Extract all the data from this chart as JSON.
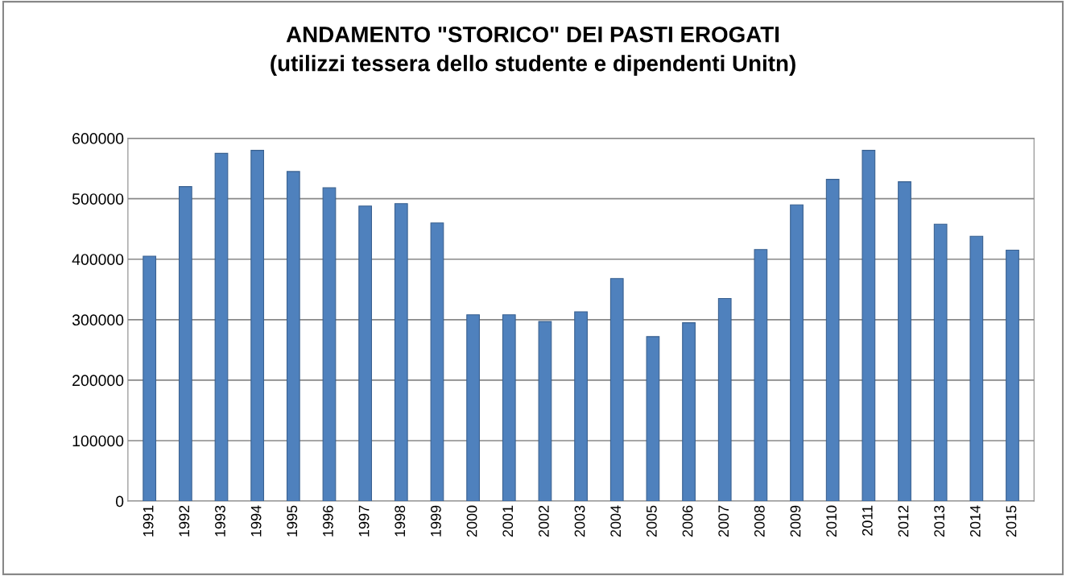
{
  "chart_data": {
    "type": "bar",
    "title": "ANDAMENTO \"STORICO\" DEI PASTI EROGATI\n(utilizzi tessera dello studente e dipendenti Unitn)",
    "categories": [
      "1991",
      "1992",
      "1993",
      "1994",
      "1995",
      "1996",
      "1997",
      "1998",
      "1999",
      "2000",
      "2001",
      "2002",
      "2003",
      "2004",
      "2005",
      "2006",
      "2007",
      "2008",
      "2009",
      "2010",
      "2011",
      "2012",
      "2013",
      "2014",
      "2015"
    ],
    "values": [
      405000,
      520000,
      575000,
      580000,
      545000,
      518000,
      488000,
      492000,
      460000,
      308000,
      308000,
      297000,
      313000,
      368000,
      272000,
      295000,
      335000,
      416000,
      490000,
      532000,
      580000,
      528000,
      458000,
      438000,
      415000
    ],
    "color": "#4f81bd",
    "ylim": [
      0,
      600000
    ],
    "yticks": [
      0,
      100000,
      200000,
      300000,
      400000,
      500000,
      600000
    ],
    "grid": "y",
    "legend": false
  }
}
